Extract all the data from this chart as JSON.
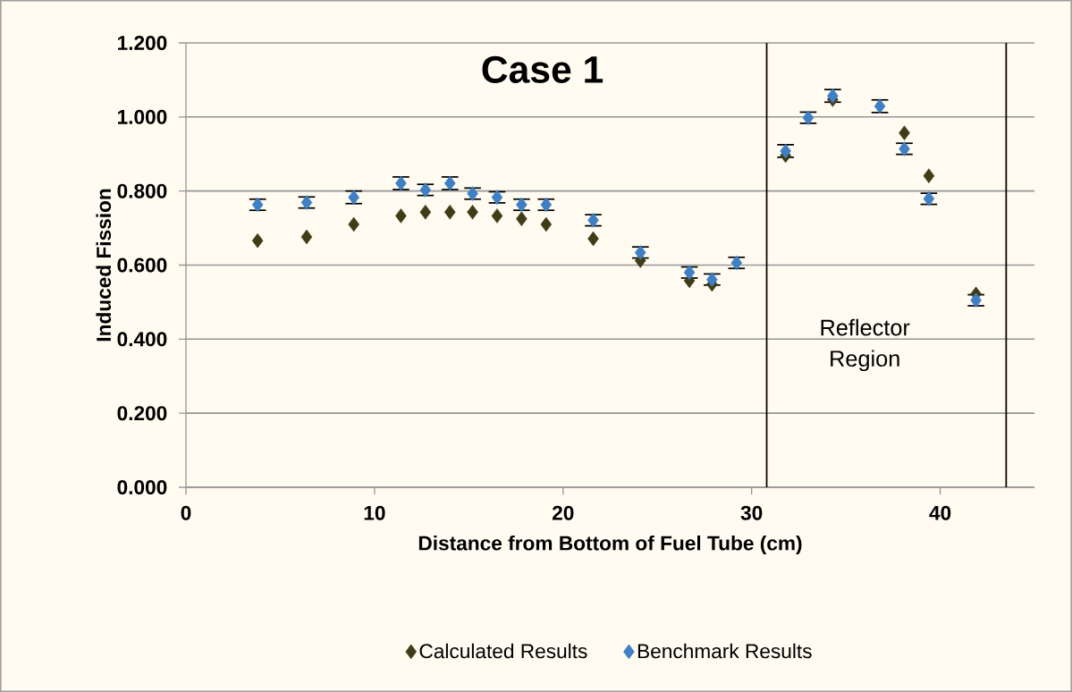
{
  "chart_data": {
    "type": "scatter",
    "title": "Case 1",
    "xlabel": "Distance from Bottom of Fuel Tube (cm)",
    "ylabel": "Induced Fission",
    "x": [
      3.8,
      6.4,
      8.9,
      11.4,
      12.7,
      14.0,
      15.2,
      16.5,
      17.8,
      19.1,
      21.6,
      24.1,
      26.7,
      27.9,
      29.2,
      31.8,
      33.0,
      34.3,
      36.8,
      38.1,
      39.4,
      41.9
    ],
    "series": [
      {
        "name": "Calculated Results",
        "color": "#403c18",
        "values": [
          0.666,
          0.676,
          0.71,
          0.733,
          0.743,
          0.743,
          0.743,
          0.733,
          0.725,
          0.71,
          0.671,
          0.612,
          0.558,
          0.548,
          null,
          0.896,
          null,
          1.047,
          null,
          0.957,
          0.841,
          0.522
        ]
      },
      {
        "name": "Benchmark Results",
        "color": "#3f7fc4",
        "values": [
          0.763,
          0.769,
          0.783,
          0.821,
          0.803,
          0.821,
          0.793,
          0.783,
          0.763,
          0.763,
          0.721,
          0.634,
          0.58,
          0.561,
          0.606,
          0.908,
          0.998,
          1.057,
          1.029,
          0.914,
          0.779,
          0.505
        ],
        "errors": [
          0.015,
          0.015,
          0.017,
          0.017,
          0.015,
          0.017,
          0.015,
          0.015,
          0.015,
          0.015,
          0.015,
          0.015,
          0.015,
          0.015,
          0.015,
          0.017,
          0.015,
          0.017,
          0.017,
          0.015,
          0.015,
          0.015
        ]
      }
    ],
    "xlim": [
      0,
      45
    ],
    "xticks": [
      0,
      10,
      20,
      30,
      40
    ],
    "ylim": [
      0,
      1.2
    ],
    "yticks": [
      {
        "value": 0,
        "label": "0.000"
      },
      {
        "value": 0.2,
        "label": "0.200"
      },
      {
        "value": 0.4,
        "label": "0.400"
      },
      {
        "value": 0.6,
        "label": "0.600"
      },
      {
        "value": 0.8,
        "label": "0.800"
      },
      {
        "value": 1.0,
        "label": "1.000"
      },
      {
        "value": 1.2,
        "label": "1.200"
      }
    ],
    "grid": "y",
    "legend": "bottom",
    "marker": "diamond",
    "ref_lines": [
      {
        "axis": "x",
        "value": 30.8,
        "color": "#000000"
      },
      {
        "axis": "x",
        "value": 43.5,
        "color": "#000000"
      }
    ],
    "annotations": [
      "Reflector Region"
    ]
  }
}
